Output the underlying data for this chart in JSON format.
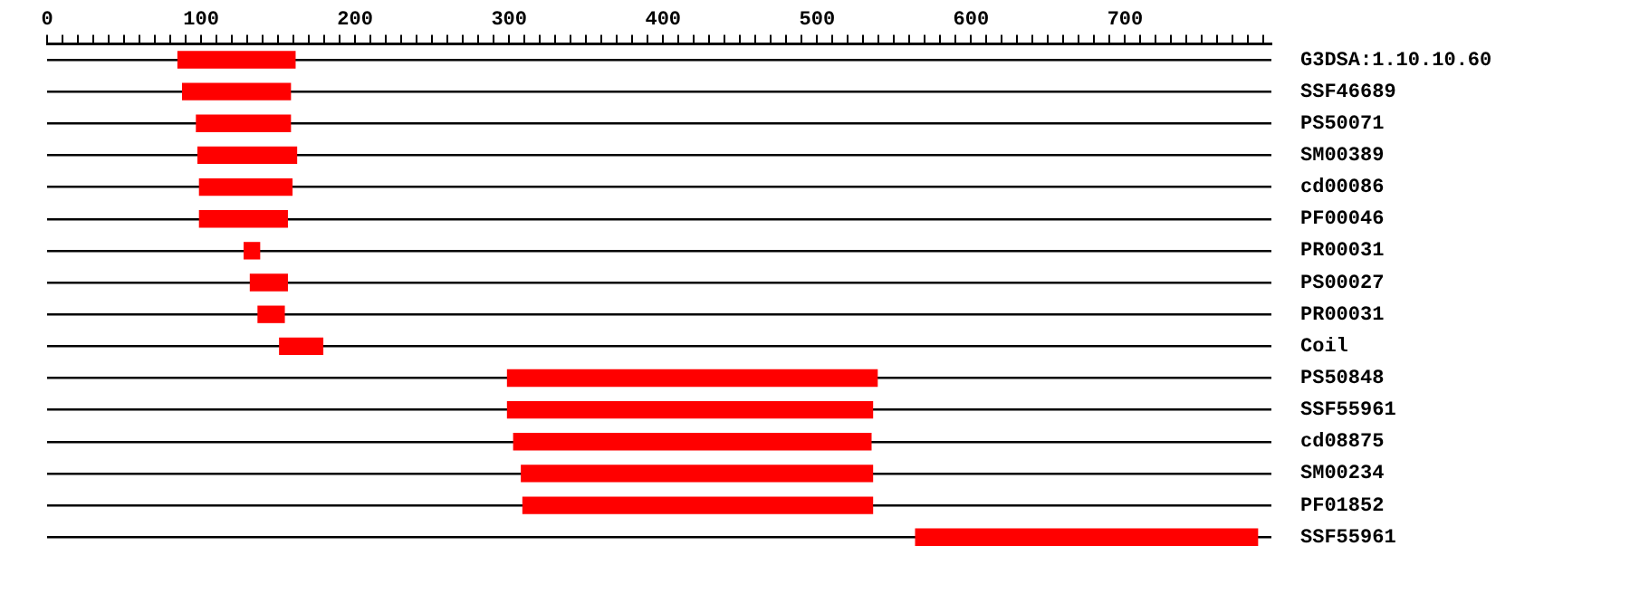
{
  "chart_data": {
    "type": "bar",
    "orientation": "horizontal",
    "categories": [
      "G3DSA:1.10.10.60",
      "SSF46689",
      "PS50071",
      "SM00389",
      "cd00086",
      "PF00046",
      "PR00031",
      "PS00027",
      "PR00031",
      "Coil",
      "PS50848",
      "SSF55961",
      "cd08875",
      "SM00234",
      "PF01852",
      "SSF55961"
    ],
    "base": [
      85,
      88,
      97,
      98,
      99,
      99,
      128,
      132,
      137,
      151,
      299,
      299,
      303,
      308,
      309,
      564
    ],
    "values": [
      76,
      70,
      61,
      64,
      60,
      57,
      10,
      24,
      17,
      28,
      240,
      237,
      232,
      228,
      227,
      222
    ],
    "color": "#ff0000",
    "grid": "y",
    "legend": false,
    "xlim": [
      0,
      795
    ],
    "xticks": [
      0,
      {
        "value": 10,
        "label": null
      },
      {
        "value": 20,
        "label": null
      },
      {
        "value": 30,
        "label": null
      },
      {
        "value": 40,
        "label": null
      },
      {
        "value": 50,
        "label": null
      },
      {
        "value": 60,
        "label": null
      },
      {
        "value": 70,
        "label": null
      },
      {
        "value": 80,
        "label": null
      },
      {
        "value": 90,
        "label": null
      },
      100,
      {
        "value": 110,
        "label": null
      },
      {
        "value": 120,
        "label": null
      },
      {
        "value": 130,
        "label": null
      },
      {
        "value": 140,
        "label": null
      },
      {
        "value": 150,
        "label": null
      },
      {
        "value": 160,
        "label": null
      },
      {
        "value": 170,
        "label": null
      },
      {
        "value": 180,
        "label": null
      },
      {
        "value": 190,
        "label": null
      },
      200,
      {
        "value": 210,
        "label": null
      },
      {
        "value": 220,
        "label": null
      },
      {
        "value": 230,
        "label": null
      },
      {
        "value": 240,
        "label": null
      },
      {
        "value": 250,
        "label": null
      },
      {
        "value": 260,
        "label": null
      },
      {
        "value": 270,
        "label": null
      },
      {
        "value": 280,
        "label": null
      },
      {
        "value": 290,
        "label": null
      },
      300,
      {
        "value": 310,
        "label": null
      },
      {
        "value": 320,
        "label": null
      },
      {
        "value": 330,
        "label": null
      },
      {
        "value": 340,
        "label": null
      },
      {
        "value": 350,
        "label": null
      },
      {
        "value": 360,
        "label": null
      },
      {
        "value": 370,
        "label": null
      },
      {
        "value": 380,
        "label": null
      },
      {
        "value": 390,
        "label": null
      },
      400,
      {
        "value": 410,
        "label": null
      },
      {
        "value": 420,
        "label": null
      },
      {
        "value": 430,
        "label": null
      },
      {
        "value": 440,
        "label": null
      },
      {
        "value": 450,
        "label": null
      },
      {
        "value": 460,
        "label": null
      },
      {
        "value": 470,
        "label": null
      },
      {
        "value": 480,
        "label": null
      },
      {
        "value": 490,
        "label": null
      },
      500,
      {
        "value": 510,
        "label": null
      },
      {
        "value": 520,
        "label": null
      },
      {
        "value": 530,
        "label": null
      },
      {
        "value": 540,
        "label": null
      },
      {
        "value": 550,
        "label": null
      },
      {
        "value": 560,
        "label": null
      },
      {
        "value": 570,
        "label": null
      },
      {
        "value": 580,
        "label": null
      },
      {
        "value": 590,
        "label": null
      },
      600,
      {
        "value": 610,
        "label": null
      },
      {
        "value": 620,
        "label": null
      },
      {
        "value": 630,
        "label": null
      },
      {
        "value": 640,
        "label": null
      },
      {
        "value": 650,
        "label": null
      },
      {
        "value": 660,
        "label": null
      },
      {
        "value": 670,
        "label": null
      },
      {
        "value": 680,
        "label": null
      },
      {
        "value": 690,
        "label": null
      },
      700,
      {
        "value": 710,
        "label": null
      },
      {
        "value": 720,
        "label": null
      },
      {
        "value": 730,
        "label": null
      },
      {
        "value": 740,
        "label": null
      },
      {
        "value": 750,
        "label": null
      },
      {
        "value": 760,
        "label": null
      },
      {
        "value": 770,
        "label": null
      },
      {
        "value": 780,
        "label": null
      },
      {
        "value": 790,
        "label": null
      }
    ]
  }
}
